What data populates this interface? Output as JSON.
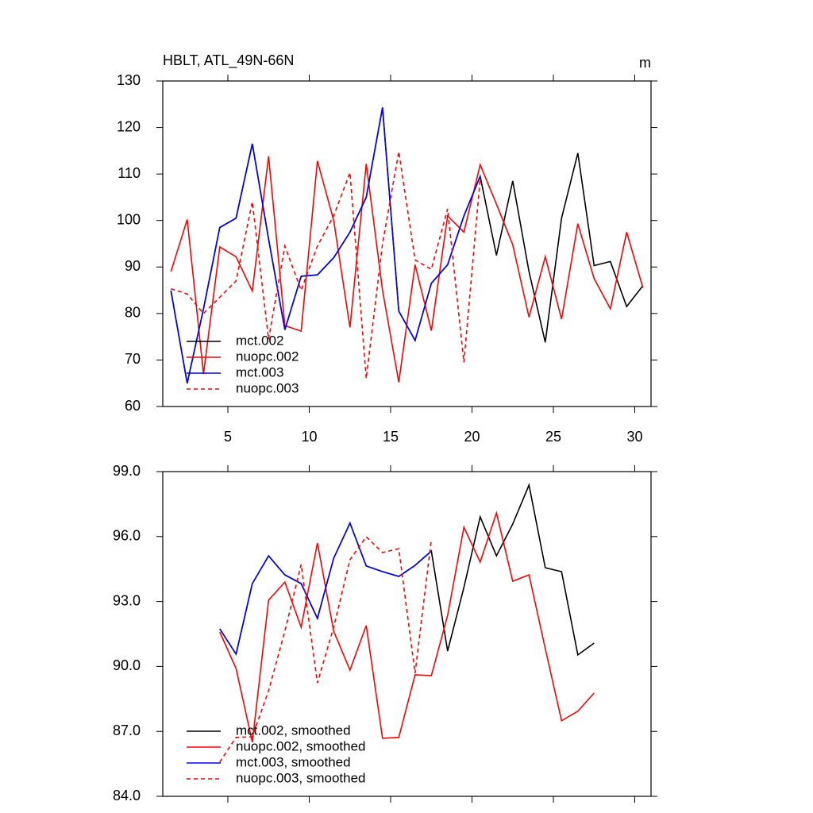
{
  "chart_data": [
    {
      "type": "line",
      "title": "HBLT, ATL_49N-66N",
      "units": "m",
      "x": [
        1.5,
        2.5,
        3.5,
        4.5,
        5.5,
        6.5,
        7.5,
        8.5,
        9.5,
        10.5,
        11.5,
        12.5,
        13.5,
        14.5,
        15.5,
        16.5,
        17.5,
        18.5,
        19.5,
        20.5,
        21.5,
        22.5,
        23.5,
        24.5,
        25.5,
        26.5,
        27.5,
        28.5,
        29.5,
        30.5
      ],
      "xlim": [
        1,
        31
      ],
      "xticks": [
        5,
        10,
        15,
        20,
        25,
        30
      ],
      "show_xtick_labels": true,
      "ylim": [
        60,
        130
      ],
      "yticks": [
        60,
        70,
        80,
        90,
        100,
        110,
        120,
        130
      ],
      "legend": "lower left",
      "series": [
        {
          "name": "mct.002",
          "color": "#000000",
          "dashed": false,
          "values": [
            84.9,
            65,
            81,
            98.5,
            100.5,
            116.5,
            96,
            76.5,
            88,
            88.3,
            92,
            97.5,
            105,
            124.3,
            80.5,
            74.2,
            86.5,
            90.5,
            101,
            109.5,
            92.5,
            108.5,
            89,
            73.8,
            100.5,
            114.5,
            90.3,
            91.2,
            81.5,
            86
          ]
        },
        {
          "name": "nuopc.002",
          "color": "#ff0000",
          "dashed": false,
          "values": [
            89,
            100.2,
            67,
            94.3,
            92.2,
            84.8,
            113.8,
            77.4,
            76.2,
            112.8,
            100,
            77,
            112.2,
            85,
            65.2,
            90.5,
            76.3,
            101,
            97.5,
            112,
            103.5,
            94.8,
            79.2,
            92.2,
            78.8,
            99.3,
            87.5,
            81,
            97.5,
            85.5
          ]
        },
        {
          "name": "mct.003",
          "color": "#0000ff",
          "dashed": false,
          "values": [
            84.9,
            65,
            81,
            98.5,
            100.5,
            116.5,
            96,
            76.5,
            88,
            88.3,
            92,
            97.5,
            105,
            124.3,
            80.5,
            74.2,
            86.5,
            90.5,
            101,
            109.5,
            null,
            null,
            null,
            null,
            null,
            null,
            null,
            null,
            null,
            null
          ]
        },
        {
          "name": "nuopc.003",
          "color": "#ff0000",
          "dashed": true,
          "values": [
            85.3,
            84.2,
            80,
            83.5,
            87,
            104,
            74.5,
            94.5,
            85,
            94.5,
            101,
            110.3,
            66,
            95,
            114.8,
            91.5,
            89.5,
            102.5,
            69.5,
            109,
            null,
            null,
            null,
            null,
            null,
            null,
            null,
            null,
            null,
            null
          ]
        }
      ]
    },
    {
      "type": "line",
      "x": [
        4.5,
        5.5,
        6.5,
        7.5,
        8.5,
        9.5,
        10.5,
        11.5,
        12.5,
        13.5,
        14.5,
        15.5,
        16.5,
        17.5,
        18.5,
        19.5,
        20.5,
        21.5,
        22.5,
        23.5,
        24.5,
        25.5,
        26.5,
        27.5
      ],
      "xlim": [
        1,
        31
      ],
      "xticks": [
        5,
        10,
        15,
        20,
        25,
        30
      ],
      "show_xtick_labels": false,
      "ylim": [
        84,
        99
      ],
      "yticks": [
        {
          "value": 84,
          "label": "84.0"
        },
        {
          "value": 87,
          "label": "87.0"
        },
        {
          "value": 90,
          "label": "90.0"
        },
        {
          "value": 93,
          "label": "93.0"
        },
        {
          "value": 96,
          "label": "96.0"
        },
        {
          "value": 99,
          "label": "99.0"
        }
      ],
      "legend": "lower left",
      "series": [
        {
          "name": "mct.002, smoothed",
          "color": "#000000",
          "dashed": false,
          "values": [
            91.74,
            90.57,
            93.83,
            95.11,
            94.23,
            93.83,
            92.22,
            95.0,
            96.62,
            94.64,
            94.38,
            94.16,
            94.67,
            95.33,
            90.71,
            93.65,
            96.91,
            95.11,
            96.58,
            98.38,
            94.56,
            94.38,
            90.53,
            91.08
          ]
        },
        {
          "name": "nuopc.002, smoothed",
          "color": "#ff0000",
          "dashed": false,
          "values": [
            91.59,
            89.91,
            86.5,
            93.06,
            93.9,
            91.81,
            95.7,
            91.63,
            89.83,
            91.89,
            86.68,
            86.72,
            89.61,
            89.58,
            92.36,
            96.43,
            94.82,
            97.09,
            93.94,
            94.23,
            90.82,
            87.49,
            87.93,
            88.77
          ]
        },
        {
          "name": "mct.003, smoothed",
          "color": "#0000ff",
          "dashed": false,
          "values": [
            91.74,
            90.57,
            93.83,
            95.11,
            94.23,
            93.83,
            92.22,
            95.0,
            96.62,
            94.64,
            94.38,
            94.16,
            94.67,
            95.33,
            null,
            null,
            null,
            null,
            null,
            null,
            null,
            null,
            null,
            null
          ]
        },
        {
          "name": "nuopc.003, smoothed",
          "color": "#ff0000",
          "dashed": true,
          "values": [
            85.58,
            86.72,
            86.75,
            88.88,
            91.63,
            94.71,
            89.24,
            91.81,
            94.93,
            95.99,
            95.26,
            95.44,
            89.69,
            95.88,
            null,
            null,
            null,
            null,
            null,
            null,
            null,
            null,
            null,
            null
          ]
        }
      ]
    }
  ]
}
